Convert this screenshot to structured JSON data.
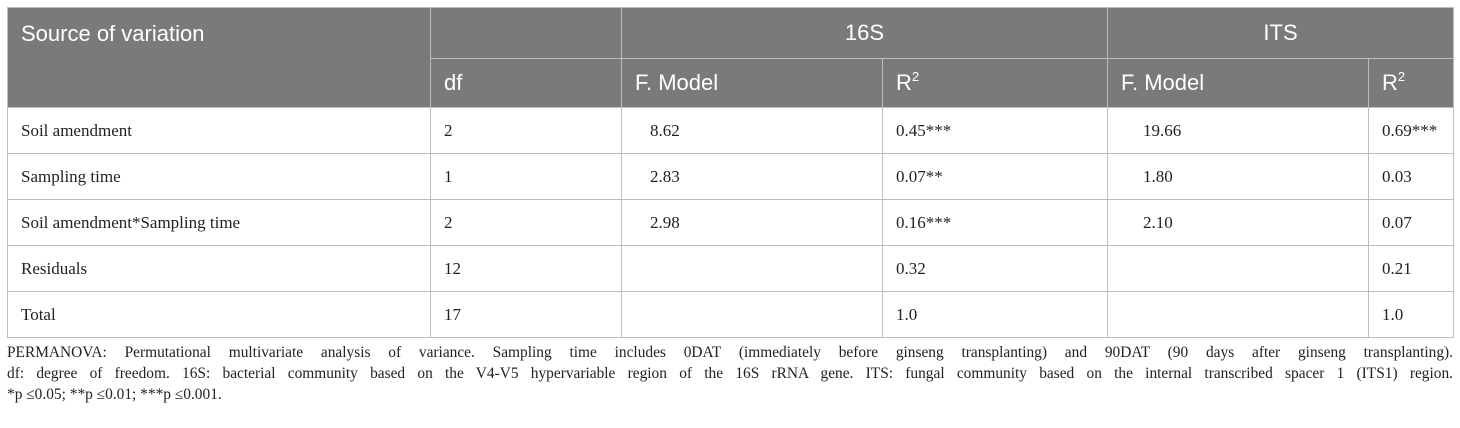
{
  "table": {
    "header": {
      "source": "Source of variation",
      "group1": "16S",
      "group2": "ITS",
      "df": "df",
      "fmodel": "F. Model",
      "r_base": "R",
      "r_sup": "2"
    },
    "rows": [
      {
        "source": "Soil amendment",
        "df": "2",
        "f16s": "8.62",
        "r16s": "0.45***",
        "fits": "19.66",
        "rits": "0.69***"
      },
      {
        "source": "Sampling time",
        "df": "1",
        "f16s": "2.83",
        "r16s": "0.07**",
        "fits": "1.80",
        "rits": "0.03"
      },
      {
        "source": "Soil amendment*Sampling time",
        "df": "2",
        "f16s": "2.98",
        "r16s": "0.16***",
        "fits": "2.10",
        "rits": "0.07"
      },
      {
        "source": "Residuals",
        "df": "12",
        "f16s": "",
        "r16s": "0.32",
        "fits": "",
        "rits": "0.21"
      },
      {
        "source": "Total",
        "df": "17",
        "f16s": "",
        "r16s": "1.0",
        "fits": "",
        "rits": "1.0"
      }
    ]
  },
  "footnote": {
    "line1": "PERMANOVA: Permutational multivariate analysis of variance. Sampling time includes 0DAT (immediately before ginseng transplanting) and 90DAT (90 days after ginseng transplanting).",
    "line2": "df: degree of freedom. 16S: bacterial community based on the V4-V5 hypervariable region of the 16S rRNA gene. ITS: fungal community based on the internal transcribed spacer 1 (ITS1) region.",
    "line3": "*p ≤0.05; **p ≤0.01; ***p ≤0.001."
  }
}
